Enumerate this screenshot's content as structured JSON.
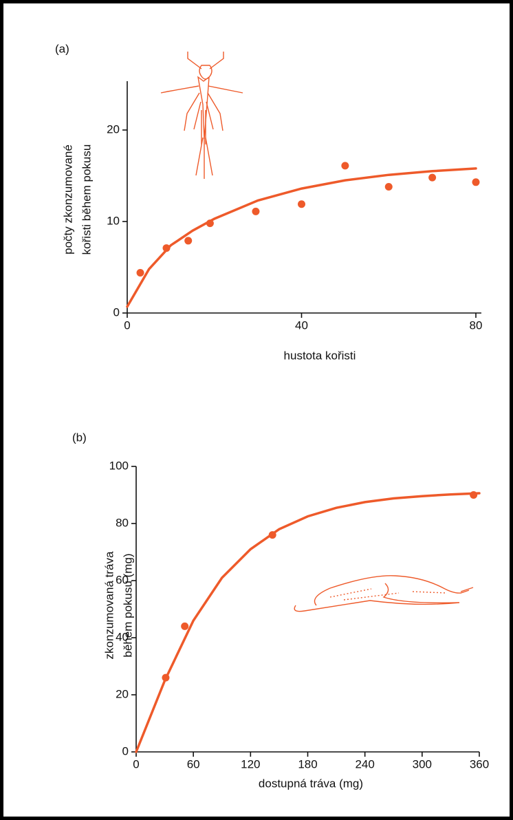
{
  "chart_data": [
    {
      "type": "scatter",
      "label": "(a)",
      "xlabel": "hustota kořisti",
      "ylabel": [
        "počty zkonzumované",
        "kořisti během pokusu"
      ],
      "color": "#ee5a2a",
      "xlim": [
        0,
        80
      ],
      "xticks": [
        0,
        40,
        80
      ],
      "ylim": [
        0,
        25
      ],
      "yticks": [
        0,
        10,
        20
      ],
      "points": {
        "x": [
          3,
          9,
          14,
          19,
          29.5,
          40,
          50,
          60,
          70,
          80
        ],
        "y": [
          4.4,
          7.1,
          7.9,
          9.8,
          11.1,
          11.9,
          16.1,
          13.8,
          14.8,
          14.3
        ]
      },
      "fit": {
        "x": [
          0,
          5,
          10,
          15,
          20,
          30,
          40,
          50,
          60,
          70,
          80
        ],
        "y": [
          0.7,
          4.8,
          7.4,
          9.0,
          10.3,
          12.3,
          13.6,
          14.5,
          15.1,
          15.5,
          15.8
        ]
      }
    },
    {
      "type": "scatter",
      "label": "(b)",
      "xlabel": "dostupná tráva (mg)",
      "ylabel": [
        "zkonzumovaná tráva",
        "během pokusu (mg)"
      ],
      "color": "#ee5a2a",
      "xlim": [
        0,
        360
      ],
      "xticks": [
        0,
        60,
        120,
        180,
        240,
        300,
        360
      ],
      "ylim": [
        0,
        100
      ],
      "yticks": [
        0,
        20,
        40,
        60,
        80,
        100
      ],
      "points": {
        "x": [
          31,
          51,
          143,
          354
        ],
        "y": [
          26,
          44,
          76,
          90
        ]
      },
      "fit": {
        "x": [
          0,
          30,
          60,
          90,
          120,
          150,
          180,
          210,
          240,
          270,
          300,
          330,
          360
        ],
        "y": [
          0,
          25,
          46,
          61,
          71,
          78,
          82.5,
          85.5,
          87.5,
          88.8,
          89.6,
          90.2,
          90.6
        ]
      }
    }
  ]
}
